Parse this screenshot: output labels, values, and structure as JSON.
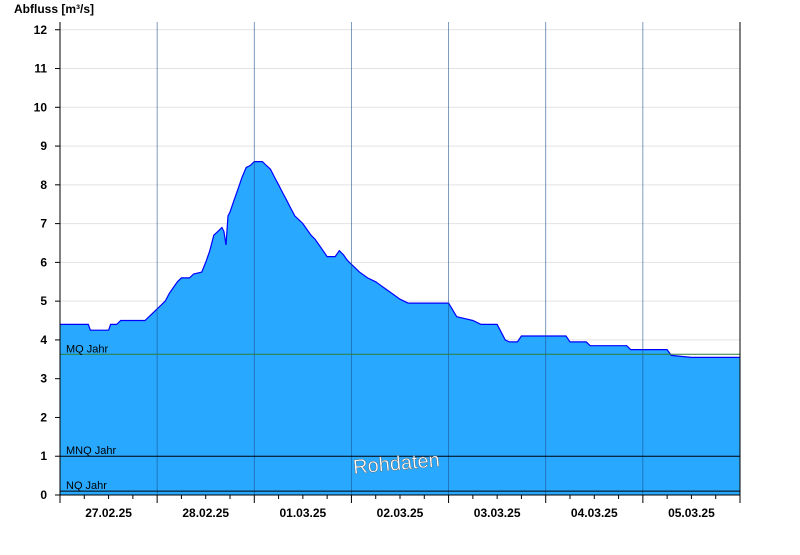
{
  "chart_data": {
    "type": "area",
    "title": "",
    "xlabel": "",
    "ylabel": "Abfluss [m³/s]",
    "ylim": [
      0,
      12.2
    ],
    "yticks": [
      0,
      1,
      2,
      3,
      4,
      5,
      6,
      7,
      8,
      9,
      10,
      11,
      12
    ],
    "x_tick_labels": [
      "27.02.25",
      "28.02.25",
      "01.03.25",
      "02.03.25",
      "03.03.25",
      "04.03.25",
      "05.03.25"
    ],
    "x_range_hours": [
      0,
      168
    ],
    "grid": true,
    "series": [
      {
        "color": "#29a8ff",
        "outline_color": "#0000ff",
        "points": [
          [
            0,
            4.4
          ],
          [
            7,
            4.4
          ],
          [
            7.5,
            4.25
          ],
          [
            12,
            4.25
          ],
          [
            12.5,
            4.4
          ],
          [
            14,
            4.4
          ],
          [
            15,
            4.5
          ],
          [
            21,
            4.5
          ],
          [
            22,
            4.6
          ],
          [
            23,
            4.7
          ],
          [
            24,
            4.8
          ],
          [
            25,
            4.9
          ],
          [
            26,
            5.0
          ],
          [
            27,
            5.2
          ],
          [
            28,
            5.35
          ],
          [
            29,
            5.5
          ],
          [
            30,
            5.6
          ],
          [
            32,
            5.6
          ],
          [
            33,
            5.7
          ],
          [
            35,
            5.75
          ],
          [
            36,
            6.0
          ],
          [
            37,
            6.3
          ],
          [
            38,
            6.7
          ],
          [
            39,
            6.8
          ],
          [
            40,
            6.9
          ],
          [
            40.5,
            6.8
          ],
          [
            41,
            6.45
          ],
          [
            41.5,
            7.2
          ],
          [
            42,
            7.3
          ],
          [
            43,
            7.6
          ],
          [
            44,
            7.9
          ],
          [
            45,
            8.2
          ],
          [
            46,
            8.45
          ],
          [
            47,
            8.5
          ],
          [
            48,
            8.6
          ],
          [
            50,
            8.6
          ],
          [
            51,
            8.5
          ],
          [
            52,
            8.4
          ],
          [
            53,
            8.2
          ],
          [
            54,
            8.0
          ],
          [
            55,
            7.8
          ],
          [
            56,
            7.6
          ],
          [
            57,
            7.4
          ],
          [
            58,
            7.2
          ],
          [
            59,
            7.1
          ],
          [
            60,
            7.0
          ],
          [
            61,
            6.85
          ],
          [
            62,
            6.7
          ],
          [
            63,
            6.6
          ],
          [
            64,
            6.45
          ],
          [
            65,
            6.3
          ],
          [
            66,
            6.15
          ],
          [
            68,
            6.15
          ],
          [
            69,
            6.3
          ],
          [
            70,
            6.2
          ],
          [
            71,
            6.05
          ],
          [
            72,
            5.95
          ],
          [
            73,
            5.85
          ],
          [
            74,
            5.75
          ],
          [
            76,
            5.6
          ],
          [
            78,
            5.5
          ],
          [
            80,
            5.35
          ],
          [
            82,
            5.2
          ],
          [
            84,
            5.05
          ],
          [
            86,
            4.95
          ],
          [
            96,
            4.95
          ],
          [
            98,
            4.6
          ],
          [
            100,
            4.55
          ],
          [
            102,
            4.5
          ],
          [
            104,
            4.4
          ],
          [
            108,
            4.4
          ],
          [
            109,
            4.2
          ],
          [
            110,
            4.0
          ],
          [
            111,
            3.95
          ],
          [
            113,
            3.95
          ],
          [
            114,
            4.1
          ],
          [
            119,
            4.1
          ],
          [
            125,
            4.1
          ],
          [
            126,
            3.95
          ],
          [
            130,
            3.95
          ],
          [
            131,
            3.85
          ],
          [
            140,
            3.85
          ],
          [
            141,
            3.75
          ],
          [
            150,
            3.75
          ],
          [
            151,
            3.6
          ],
          [
            156,
            3.55
          ],
          [
            168,
            3.55
          ]
        ]
      }
    ],
    "reference_lines": [
      {
        "label": "MQ Jahr",
        "value": 3.63,
        "color": "#2e7d32"
      },
      {
        "label": "MNQ Jahr",
        "value": 1.0,
        "color": "#000000"
      },
      {
        "label": "NQ Jahr",
        "value": 0.1,
        "color": "#000000"
      }
    ],
    "watermark": "Rohdaten"
  }
}
